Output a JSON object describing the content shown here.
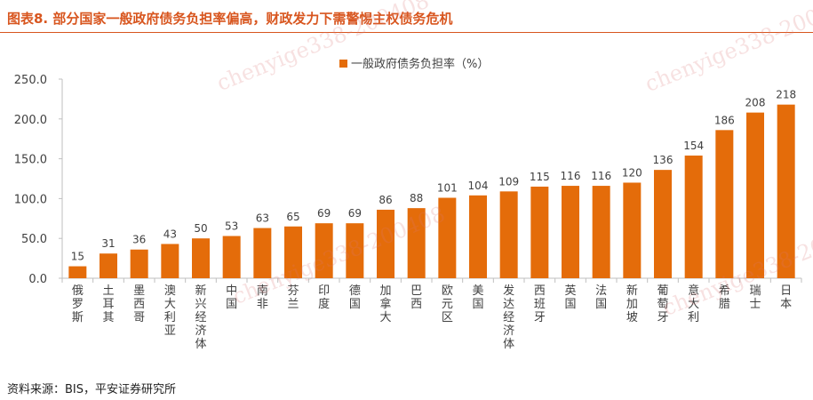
{
  "figure": {
    "title": "图表8.  部分国家一般政府债务负担率偏高，财政发力下需警惕主权债务危机",
    "source": "资料来源：BIS，平安证券研究所",
    "watermark": "chenyige338-200408"
  },
  "colors": {
    "bar": "#e46c0a",
    "title": "#d8561f",
    "axis": "#bfbfbf",
    "text": "#404040"
  },
  "chart_data": {
    "type": "bar",
    "categories": [
      "俄罗斯",
      "土耳其",
      "墨西哥",
      "澳大利亚",
      "新兴经济体",
      "中国",
      "南非",
      "芬兰",
      "印度",
      "德国",
      "加拿大",
      "巴西",
      "欧元区",
      "美国",
      "发达经济体",
      "西班牙",
      "英国",
      "法国",
      "新加坡",
      "葡萄牙",
      "意大利",
      "希腊",
      "瑞士",
      "日本"
    ],
    "series": [
      {
        "name": "一般政府债务负担率（%）",
        "values": [
          15,
          31,
          36,
          43,
          50,
          53,
          63,
          65,
          69,
          69,
          86,
          88,
          101,
          104,
          109,
          115,
          116,
          116,
          120,
          136,
          154,
          186,
          208,
          218
        ]
      }
    ],
    "ylim": [
      0,
      250
    ],
    "yticks": [
      "0.0",
      "50.0",
      "100.0",
      "150.0",
      "200.0",
      "250.0"
    ],
    "legend": "top-center",
    "grid": false
  }
}
